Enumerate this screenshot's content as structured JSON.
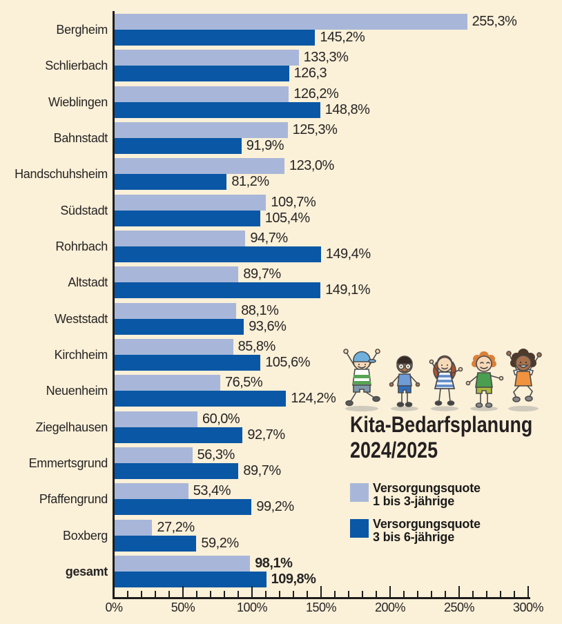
{
  "page": {
    "background": "#fbf0d8"
  },
  "title": {
    "line1": "Kita-Bedarfsplanung",
    "line2": "2024/2025"
  },
  "legend": {
    "items": [
      {
        "line1": "Versorgungsquote",
        "line2": "1 bis 3-jährige",
        "color": "#a8b7d9"
      },
      {
        "line1": "Versorgungsquote",
        "line2": "3 bis 6-jährige",
        "color": "#0a57a5"
      }
    ]
  },
  "icons": {
    "children_illustration": "five-jumping-cartoon-children"
  },
  "colors": {
    "background": "#fbf0d8",
    "bar_light_blue": "#a8b7d9",
    "bar_dark_blue": "#0a57a5",
    "axis": "#1c1c1c",
    "text": "#262424"
  },
  "chart_data": {
    "type": "bar",
    "orientation": "horizontal",
    "title": "Kita-Bedarfsplanung 2024/2025",
    "categories": [
      "Bergheim",
      "Schlierbach",
      "Wieblingen",
      "Bahnstadt",
      "Handschuhsheim",
      "Südstadt",
      "Rohrbach",
      "Altstadt",
      "Weststadt",
      "Kirchheim",
      "Neuenheim",
      "Ziegelhausen",
      "Emmertsgrund",
      "Pfaffengrund",
      "Boxberg",
      "gesamt"
    ],
    "series": [
      {
        "name": "Versorgungsquote 1 bis 3-jährige",
        "color": "#a8b7d9",
        "values": [
          255.3,
          133.3,
          126.2,
          125.3,
          123.0,
          109.7,
          94.7,
          89.7,
          88.1,
          85.8,
          76.5,
          60.0,
          56.3,
          53.4,
          27.2,
          98.1
        ],
        "labels": [
          "255,3%",
          "133,3%",
          "126,2%",
          "125,3%",
          "123,0%",
          "109,7%",
          "94,7%",
          "89,7%",
          "88,1%",
          "85,8%",
          "76,5%",
          "60,0%",
          "56,3%",
          "53,4%",
          "27,2%",
          "98,1%"
        ]
      },
      {
        "name": "Versorgungsquote 3 bis 6-jährige",
        "color": "#0a57a5",
        "values": [
          145.2,
          126.3,
          148.8,
          91.9,
          81.2,
          105.4,
          149.4,
          149.1,
          93.6,
          105.6,
          124.2,
          92.7,
          89.7,
          99.2,
          59.2,
          109.8
        ],
        "labels": [
          "145,2%",
          "126,3",
          "148,8%",
          "91,9%",
          "81,2%",
          "105,4%",
          "149,4%",
          "149,1%",
          "93,6%",
          "105,6%",
          "124,2%",
          "92,7%",
          "89,7%",
          "99,2%",
          "59,2%",
          "109,8%"
        ]
      }
    ],
    "xlim": [
      0,
      300
    ],
    "x_tick_labels": [
      "0%",
      "50%",
      "100%",
      "150%",
      "200%",
      "250%",
      "300%"
    ],
    "x_major_step": 50,
    "x_minor_step": 10,
    "grid": false,
    "legend_position": "right-middle",
    "bold_category_index": 15
  }
}
